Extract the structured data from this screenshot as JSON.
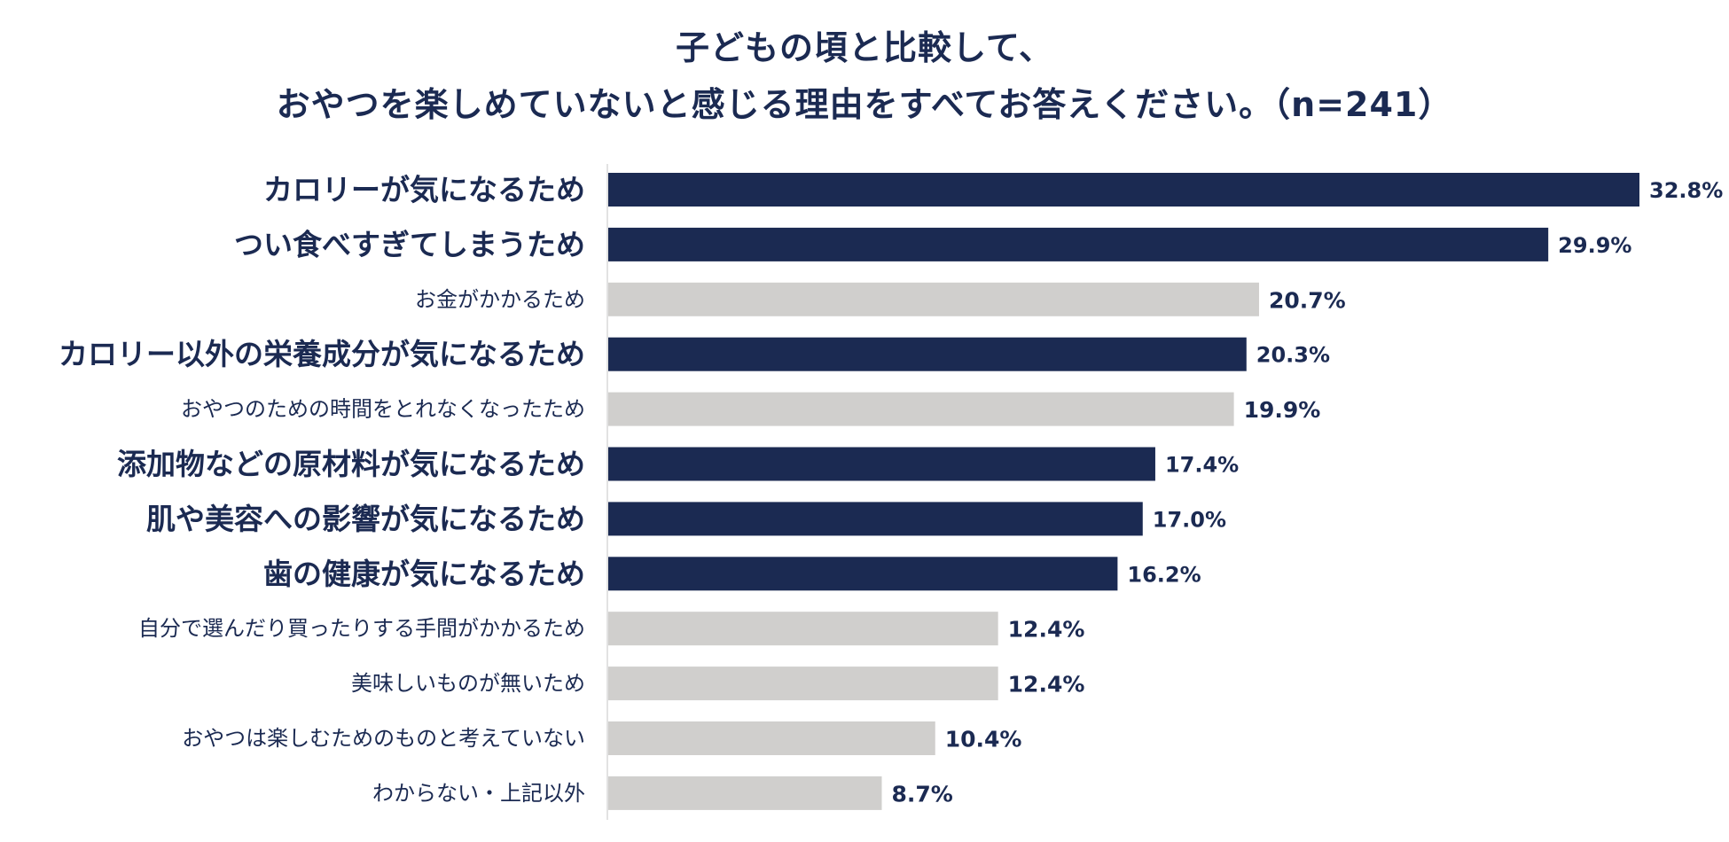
{
  "chart_data": {
    "type": "bar",
    "orientation": "horizontal",
    "title_lines": [
      "子どもの頃と比較して、",
      "おやつを楽しめていないと感じる理由をすべてお答えください。（n=241）"
    ],
    "categories": [
      "カロリーが気になるため",
      "つい食べすぎてしまうため",
      "お金がかかるため",
      "カロリー以外の栄養成分が気になるため",
      "おやつのための時間をとれなくなったため",
      "添加物などの原材料が気になるため",
      "肌や美容への影響が気になるため",
      "歯の健康が気になるため",
      "自分で選んだり買ったりする手間がかかるため",
      "美味しいものが無いため",
      "おやつは楽しむためのものと考えていない",
      "わからない・上記以外"
    ],
    "values": [
      32.8,
      29.9,
      20.7,
      20.3,
      19.9,
      17.4,
      17.0,
      16.2,
      12.4,
      12.4,
      10.4,
      8.7
    ],
    "value_labels": [
      "32.8%",
      "29.9%",
      "20.7%",
      "20.3%",
      "19.9%",
      "17.4%",
      "17.0%",
      "16.2%",
      "12.4%",
      "12.4%",
      "10.4%",
      "8.7%"
    ],
    "highlighted": [
      true,
      true,
      false,
      true,
      false,
      true,
      true,
      true,
      false,
      false,
      false,
      false
    ],
    "colors": {
      "highlight": "#1b2a52",
      "normal": "#d0cfcd",
      "axis": "#d9d9d9"
    },
    "unit": "%",
    "xlim": [
      0,
      32.8
    ]
  }
}
